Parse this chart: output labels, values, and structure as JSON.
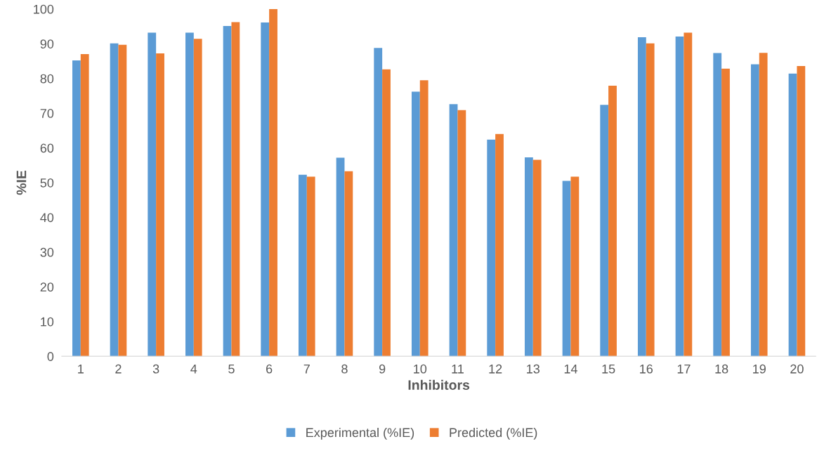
{
  "chart_data": {
    "type": "bar",
    "xlabel": "Inhibitors",
    "ylabel": "%IE",
    "categories": [
      "1",
      "2",
      "3",
      "4",
      "5",
      "6",
      "7",
      "8",
      "9",
      "10",
      "11",
      "12",
      "13",
      "14",
      "15",
      "16",
      "17",
      "18",
      "19",
      "20"
    ],
    "series": [
      {
        "name": "Experimental (%IE)",
        "color": "#5b9bd5",
        "values": [
          85.2,
          90.1,
          93.2,
          93.2,
          95.1,
          96.1,
          52.3,
          57.2,
          88.8,
          76.2,
          72.6,
          62.4,
          57.3,
          50.5,
          72.4,
          91.9,
          92.1,
          87.3,
          84.1,
          81.4
        ]
      },
      {
        "name": "Predicted (%IE)",
        "color": "#ed7d31",
        "values": [
          87.0,
          89.7,
          87.2,
          91.4,
          96.2,
          100,
          51.7,
          53.3,
          82.6,
          79.5,
          70.9,
          64.0,
          56.6,
          51.7,
          77.9,
          90.1,
          93.2,
          82.8,
          87.4,
          83.6
        ]
      }
    ],
    "ylim": [
      0,
      100
    ],
    "yticks": [
      0,
      10,
      20,
      30,
      40,
      50,
      60,
      70,
      80,
      90,
      100
    ],
    "grid": false,
    "legend": "bottom"
  }
}
